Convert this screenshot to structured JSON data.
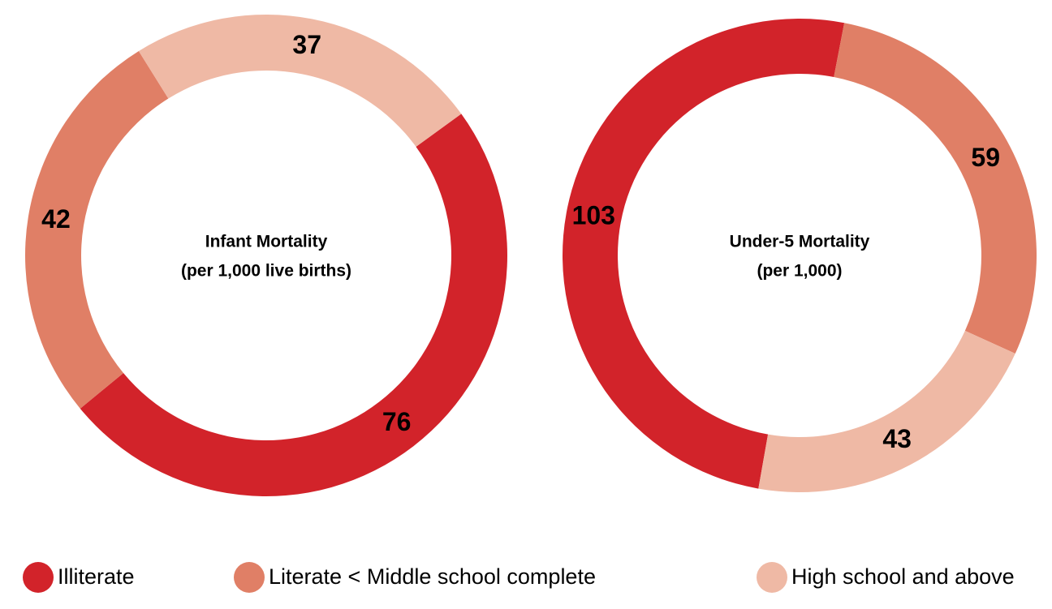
{
  "chart_data": [
    {
      "type": "pie",
      "title": "Infant Mortality",
      "subtitle": "(per 1,000 live births)",
      "categories": [
        "Illiterate",
        "Literate < Middle school complete",
        "High school and above"
      ],
      "values": [
        76,
        42,
        37
      ],
      "colors": [
        "#d2232a",
        "#e07f66",
        "#efb9a5"
      ]
    },
    {
      "type": "pie",
      "title": "Under-5 Mortality",
      "subtitle": "(per 1,000)",
      "categories": [
        "Illiterate",
        "Literate < Middle school complete",
        "High school and above"
      ],
      "values": [
        103,
        59,
        43
      ],
      "colors": [
        "#d2232a",
        "#e07f66",
        "#efb9a5"
      ]
    }
  ]
}
